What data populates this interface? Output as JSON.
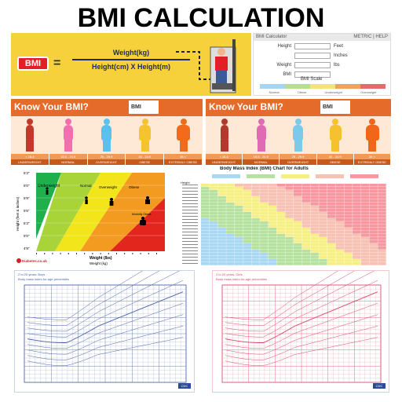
{
  "title": "BMI CALCULATION",
  "formula": {
    "bmi_label": "BMI",
    "equals": "=",
    "numerator": "Weight(kg)",
    "denominator": "Height(cm)  X  Height(m)"
  },
  "calculator": {
    "header": "BMI Calculator",
    "modes": "METRIC | HELP",
    "fields": [
      {
        "label": "Height",
        "unit": "Feet"
      },
      {
        "label": "",
        "unit": "Inches"
      },
      {
        "label": "Weight",
        "unit": "lbs"
      },
      {
        "label": "BMI",
        "unit": ""
      }
    ],
    "scale_title": "BMI Scale",
    "scale_colors": [
      "#a7d4f2",
      "#b8e08a",
      "#f6e27a",
      "#f1a25c",
      "#e56b6b"
    ],
    "scale_legend": [
      "Normal",
      "Obese",
      "Underweight",
      "Overweight"
    ]
  },
  "know_left": {
    "title": "Know Your BMI?",
    "calc_label": "BMI",
    "figures": [
      "#c0392b",
      "#f16fae",
      "#5bc0eb",
      "#f4c430",
      "#f26b1d"
    ],
    "cats": [
      {
        "range": "< 18.5",
        "name": "UNDERWEIGHT"
      },
      {
        "range": "18.5 - 24.9",
        "name": "NORMAL"
      },
      {
        "range": "25 - 29.9",
        "name": "OVERWEIGHT"
      },
      {
        "range": "30 - 34.9",
        "name": "OBESE"
      },
      {
        "range": "35 <",
        "name": "EXTREMLY OBESE"
      }
    ]
  },
  "know_right": {
    "title": "Know Your BMI?",
    "calc_label": "BMI",
    "figures": [
      "#b03a2e",
      "#e06bb5",
      "#7ccaea",
      "#f5c12e",
      "#f2661a"
    ],
    "cats": [
      {
        "range": "< 18.5",
        "name": "UNDERWEIGHT"
      },
      {
        "range": "18.5 - 24.9",
        "name": "NORMAL"
      },
      {
        "range": "25 - 29.9",
        "name": "OVERWEIGHT"
      },
      {
        "range": "30 - 34.9",
        "name": "OBESE"
      },
      {
        "range": "35 <",
        "name": "EXTREMLY OBESE"
      }
    ]
  },
  "weight_chart": {
    "ylabel": "Height (feet & inches)",
    "xlabel": "Weight (lbs)",
    "xlabel2": "Weight (kg)",
    "zones": [
      "Underweight",
      "Normal",
      "Overweight",
      "Obese",
      "Morbidly Obese"
    ],
    "yticks": [
      "6'3\"",
      "6'0\"",
      "5'9\"",
      "5'6\"",
      "5'3\"",
      "5'0\"",
      "4'9\""
    ],
    "brand": "Diabetes.co.uk",
    "colors": [
      "#1fb04b",
      "#a8d43a",
      "#f2e51b",
      "#f39b20",
      "#e2261d"
    ]
  },
  "bmi_table": {
    "title": "Body Mass Index (BMI) Chart for Adults",
    "row_label": "Height",
    "band_colors": [
      "#a9d8f2",
      "#b6e2a0",
      "#f6ee8e",
      "#f7c1b4",
      "#f39aa0"
    ]
  },
  "growth_left": {
    "title": "2 to 20 years: Boys",
    "subtitle": "Body mass index-for-age percentiles",
    "color": "#4a64a8",
    "label": "BMI",
    "foot": "CDC"
  },
  "growth_right": {
    "title": "2 to 20 years: Girls",
    "subtitle": "Body mass index-for-age percentiles",
    "color": "#d84a6a",
    "label": "BMI",
    "foot": "CDC"
  }
}
